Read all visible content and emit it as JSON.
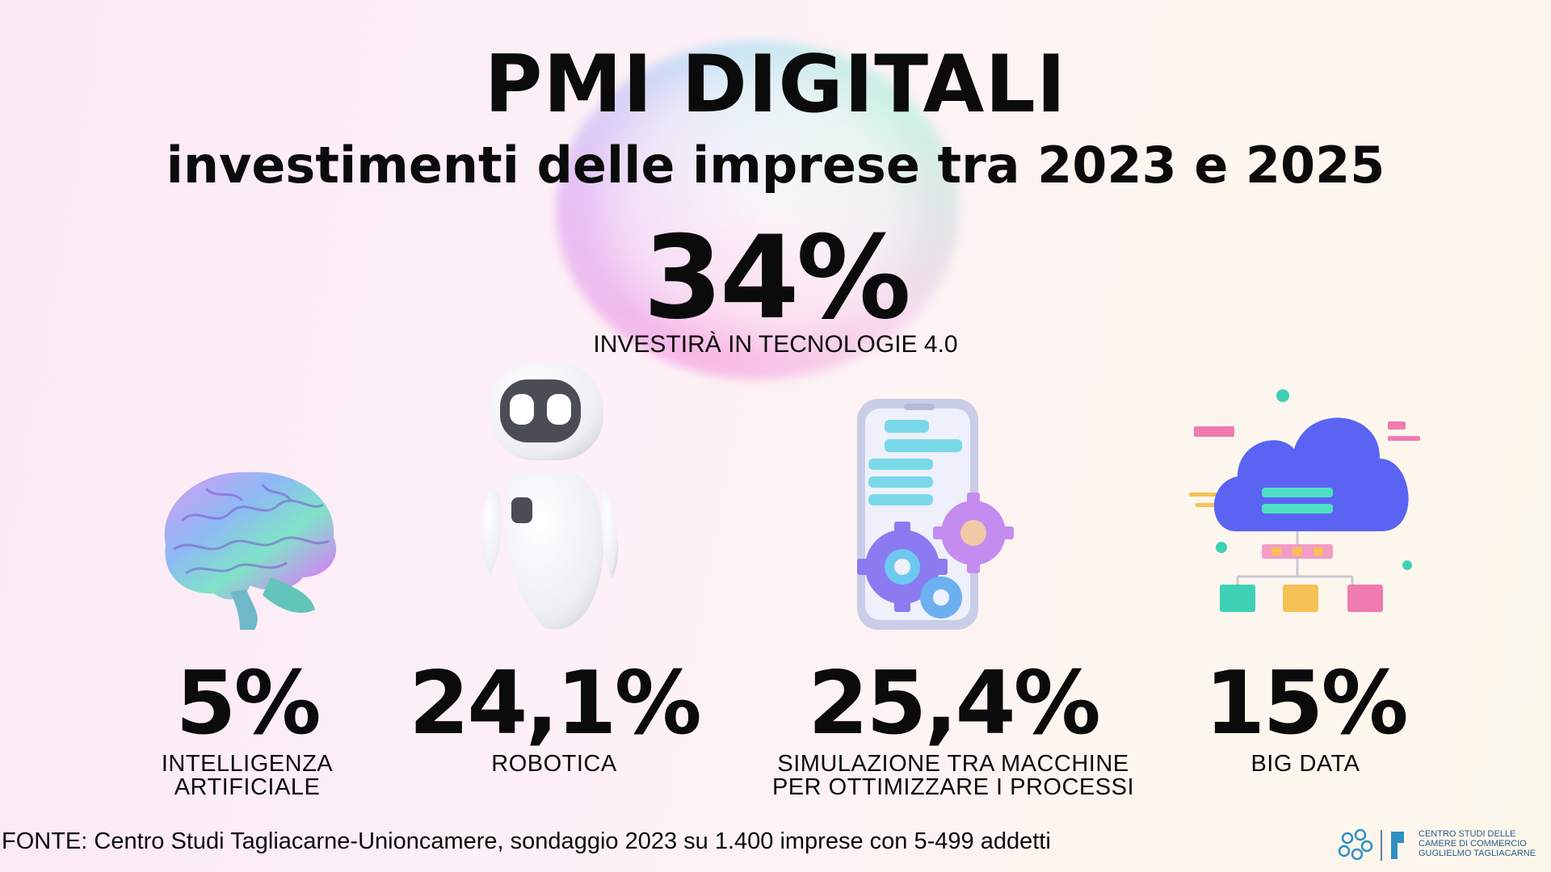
{
  "header": {
    "title": "PMI DIGITALI",
    "subtitle": "investimenti delle imprese tra 2023 e 2025"
  },
  "headline": {
    "value": "34%",
    "label": "INVESTIRÀ IN TECNOLOGIE 4.0"
  },
  "stats": [
    {
      "value": "5%",
      "label_line1": "INTELLIGENZA",
      "label_line2": "ARTIFICIALE",
      "icon": "brain-icon"
    },
    {
      "value": "24,1%",
      "label_line1": "ROBOTICA",
      "label_line2": "",
      "icon": "robot-icon"
    },
    {
      "value": "25,4%",
      "label_line1": "SIMULAZIONE TRA MACCHINE",
      "label_line2": "PER OTTIMIZZARE I PROCESSI",
      "icon": "gears-phone-icon"
    },
    {
      "value": "15%",
      "label_line1": "BIG DATA",
      "label_line2": "",
      "icon": "cloud-data-icon"
    }
  ],
  "footer": {
    "source": "FONTE: Centro Studi Tagliacarne-Unioncamere, sondaggio 2023 su 1.400 imprese con 5-499 addetti",
    "logo_line1": "CENTRO STUDI DELLE",
    "logo_line2": "CAMERE DI COMMERCIO",
    "logo_line3": "GUGLIELMO TAGLIACARNE"
  },
  "colors": {
    "background": "#fdf1f6",
    "text": "#0b0b0b",
    "cloud": "#5b63f2",
    "accent_pink": "#f07bb0",
    "accent_teal": "#3fd1b6",
    "logo": "#2f5a8a"
  }
}
